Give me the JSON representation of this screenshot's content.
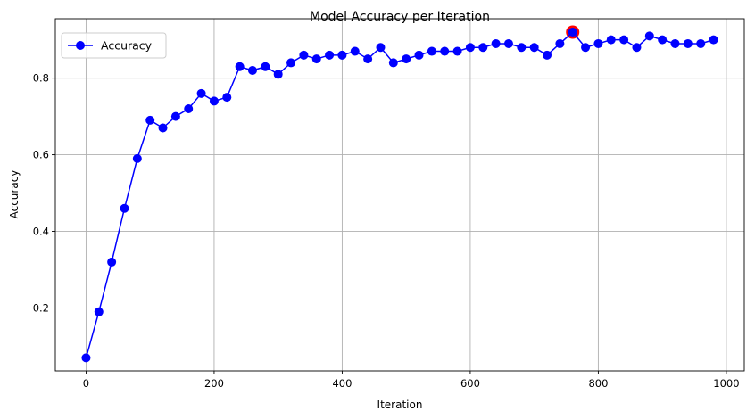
{
  "chart_data": {
    "type": "line",
    "title": "Model Accuracy per Iteration",
    "xlabel": "Iteration",
    "ylabel": "Accuracy",
    "xlim": [
      -48,
      1028
    ],
    "ylim": [
      0.036,
      0.955
    ],
    "xticks": [
      0,
      200,
      400,
      600,
      800,
      1000
    ],
    "xtick_labels": [
      "0",
      "200",
      "400",
      "600",
      "800",
      "1000"
    ],
    "yticks": [
      0.2,
      0.4,
      0.6,
      0.8
    ],
    "ytick_labels": [
      "0.2",
      "0.4",
      "0.6",
      "0.8"
    ],
    "grid": true,
    "legend_position": "top-left",
    "series": [
      {
        "name": "Accuracy",
        "color": "#0000ff",
        "marker": "circle",
        "x": [
          0,
          20,
          40,
          60,
          80,
          100,
          120,
          140,
          160,
          180,
          200,
          220,
          240,
          260,
          280,
          300,
          320,
          340,
          360,
          380,
          400,
          420,
          440,
          460,
          480,
          500,
          520,
          540,
          560,
          580,
          600,
          620,
          640,
          660,
          680,
          700,
          720,
          740,
          760,
          780,
          800,
          820,
          840,
          860,
          880,
          900,
          920,
          940,
          960,
          980
        ],
        "y": [
          0.07,
          0.19,
          0.32,
          0.46,
          0.59,
          0.69,
          0.67,
          0.7,
          0.72,
          0.76,
          0.74,
          0.75,
          0.83,
          0.82,
          0.83,
          0.81,
          0.84,
          0.86,
          0.85,
          0.86,
          0.86,
          0.87,
          0.85,
          0.88,
          0.84,
          0.85,
          0.86,
          0.87,
          0.87,
          0.87,
          0.88,
          0.88,
          0.89,
          0.89,
          0.88,
          0.88,
          0.86,
          0.89,
          0.92,
          0.88,
          0.89,
          0.9,
          0.9,
          0.88,
          0.91,
          0.9,
          0.89,
          0.89,
          0.89,
          0.9
        ]
      }
    ],
    "highlight": {
      "x": 760,
      "y": 0.92,
      "color": "#ff0000"
    }
  }
}
